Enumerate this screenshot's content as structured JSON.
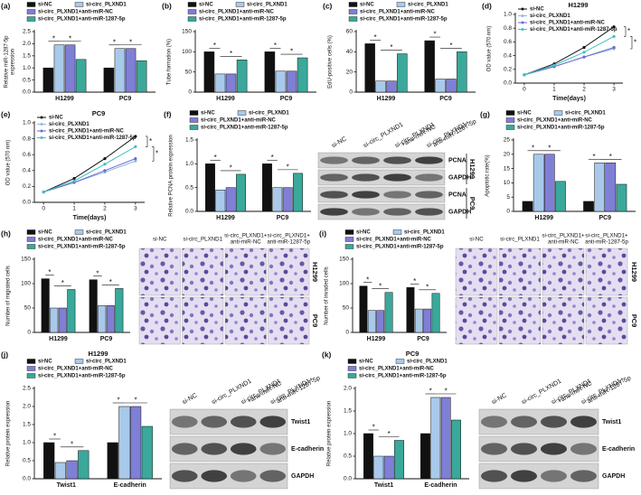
{
  "chart_data": [
    {
      "panel": "(a)",
      "type": "bar",
      "ylabel": [
        "Relative miR-1287-5p",
        "expression"
      ],
      "categories": [
        "H1299",
        "PC9"
      ],
      "series": [
        {
          "name": "si-NC",
          "color": "#111111",
          "values": [
            1.0,
            1.0
          ]
        },
        {
          "name": "si-circ_PLXND1",
          "color": "#a9c9ea",
          "values": [
            1.95,
            1.8
          ]
        },
        {
          "name": "si-circ_PLXND1+anti-miR-NC",
          "color": "#7f7fd6",
          "values": [
            1.95,
            1.8
          ]
        },
        {
          "name": "si-circ_PLXND1+anti-miR-1287-5p",
          "color": "#3aa89a",
          "values": [
            1.35,
            1.3
          ]
        }
      ],
      "ylim": [
        0,
        2.5
      ],
      "yticks": [
        {
          "value": 0,
          "label": "0.0"
        },
        0.5,
        {
          "value": 1,
          "label": "1.0"
        },
        1.5,
        {
          "value": 2,
          "label": "2.0"
        },
        2.5
      ],
      "annotations": [
        "*",
        "*",
        "*",
        "*"
      ]
    },
    {
      "panel": "(b)",
      "type": "bar",
      "ylabel": "Tube formation (%)",
      "categories": [
        "H1299",
        "PC9"
      ],
      "series": [
        {
          "name": "si-NC",
          "color": "#111111",
          "values": [
            100,
            100
          ]
        },
        {
          "name": "si-circ_PLXND1",
          "color": "#a9c9ea",
          "values": [
            45,
            52
          ]
        },
        {
          "name": "si-circ_PLXND1+anti-miR-NC",
          "color": "#7f7fd6",
          "values": [
            45,
            52
          ]
        },
        {
          "name": "si-circ_PLXND1+anti-miR-1287-5p",
          "color": "#3aa89a",
          "values": [
            80,
            85
          ]
        }
      ],
      "ylim": [
        0,
        150
      ],
      "yticks": [
        0,
        50,
        100,
        150
      ],
      "annotations": [
        "*",
        "*",
        "*",
        "*"
      ]
    },
    {
      "panel": "(c)",
      "type": "bar",
      "ylabel": "EdU-positive cells (%)",
      "categories": [
        "H1299",
        "PC9"
      ],
      "series": [
        {
          "name": "si-NC",
          "color": "#111111",
          "values": [
            48,
            51
          ]
        },
        {
          "name": "si-circ_PLXND1",
          "color": "#a9c9ea",
          "values": [
            11,
            13
          ]
        },
        {
          "name": "si-circ_PLXND1+anti-miR-NC",
          "color": "#7f7fd6",
          "values": [
            11,
            13
          ]
        },
        {
          "name": "si-circ_PLXND1+anti-miR-1287-5p",
          "color": "#3aa89a",
          "values": [
            38,
            40
          ]
        }
      ],
      "ylim": [
        0,
        60
      ],
      "yticks": [
        0,
        20,
        40,
        60
      ],
      "annotations": [
        "*",
        "*",
        "*",
        "*"
      ]
    },
    {
      "panel": "(d)",
      "type": "line",
      "title": "H1299",
      "ylabel": "OD value (570 nm)",
      "xlabel": "Time(days)",
      "x": [
        0,
        1,
        2,
        3
      ],
      "series": [
        {
          "name": "si-NC",
          "color": "#111111",
          "values": [
            0.12,
            0.28,
            0.52,
            0.82
          ]
        },
        {
          "name": "si-circ_PLXND1",
          "color": "#8fb8e0",
          "values": [
            0.12,
            0.24,
            0.38,
            0.5
          ]
        },
        {
          "name": "si-circ_PLXND1+anti-miR-NC",
          "color": "#6a6ad0",
          "values": [
            0.12,
            0.24,
            0.38,
            0.52
          ]
        },
        {
          "name": "si-circ_PLXND1+anti-miR-1287-5p",
          "color": "#40c0c0",
          "values": [
            0.12,
            0.26,
            0.45,
            0.68
          ]
        }
      ],
      "xlim": [
        -0.3,
        3.3
      ],
      "xticks": [
        0,
        1,
        2,
        3
      ],
      "ylim": [
        0,
        1
      ],
      "yticks": [
        {
          "value": 0,
          "label": "0.0"
        },
        0.2,
        0.4,
        0.6,
        0.8,
        {
          "value": 1,
          "label": "1.0"
        }
      ],
      "annotations": [
        "*",
        "*"
      ]
    },
    {
      "panel": "(e)",
      "type": "line",
      "title": "PC9",
      "ylabel": "OD value (570 nm)",
      "xlabel": "Time(days)",
      "x": [
        0,
        1,
        2,
        3
      ],
      "series": [
        {
          "name": "si-NC",
          "color": "#111111",
          "values": [
            0.13,
            0.3,
            0.55,
            0.83
          ]
        },
        {
          "name": "si-circ_PLXND1",
          "color": "#8fb8e0",
          "values": [
            0.13,
            0.25,
            0.38,
            0.52
          ]
        },
        {
          "name": "si-circ_PLXND1+anti-miR-NC",
          "color": "#6a6ad0",
          "values": [
            0.13,
            0.25,
            0.4,
            0.55
          ]
        },
        {
          "name": "si-circ_PLXND1+anti-miR-1287-5p",
          "color": "#40c0c0",
          "values": [
            0.13,
            0.27,
            0.48,
            0.7
          ]
        }
      ],
      "xlim": [
        -0.3,
        3.3
      ],
      "xticks": [
        0,
        1,
        2,
        3
      ],
      "ylim": [
        0,
        1
      ],
      "yticks": [
        {
          "value": 0,
          "label": "0.0"
        },
        0.2,
        0.4,
        0.6,
        0.8,
        {
          "value": 1,
          "label": "1.0"
        }
      ],
      "annotations": [
        "*",
        "*"
      ]
    },
    {
      "panel": "(f)",
      "type": "bar",
      "ylabel": "Relative PCNA protein expression",
      "categories": [
        "H1299",
        "PC9"
      ],
      "series": [
        {
          "name": "si-NC",
          "color": "#111111",
          "values": [
            1.0,
            1.0
          ]
        },
        {
          "name": "si-circ_PLXND1",
          "color": "#a9c9ea",
          "values": [
            0.45,
            0.5
          ]
        },
        {
          "name": "si-circ_PLXND1+anti-miR-NC",
          "color": "#7f7fd6",
          "values": [
            0.5,
            0.5
          ]
        },
        {
          "name": "si-circ_PLXND1+anti-miR-1287-5p",
          "color": "#3aa89a",
          "values": [
            0.78,
            0.8
          ]
        }
      ],
      "ylim": [
        0,
        1.5
      ],
      "yticks": [
        {
          "value": 0,
          "label": "0.0"
        },
        0.5,
        {
          "value": 1,
          "label": "1.0"
        },
        1.5
      ],
      "annotations": [
        "*",
        "*",
        "*",
        "*"
      ]
    },
    {
      "panel": "(g)",
      "type": "bar",
      "ylabel": "Apoptotic rate(%)",
      "categories": [
        "H1299",
        "PC9"
      ],
      "series": [
        {
          "name": "si-NC",
          "color": "#111111",
          "values": [
            3.5,
            3.5
          ]
        },
        {
          "name": "si-circ_PLXND1",
          "color": "#a9c9ea",
          "values": [
            20,
            17
          ]
        },
        {
          "name": "si-circ_PLXND1+anti-miR-NC",
          "color": "#7f7fd6",
          "values": [
            20,
            17
          ]
        },
        {
          "name": "si-circ_PLXND1+anti-miR-1287-5p",
          "color": "#3aa89a",
          "values": [
            10.5,
            9.5
          ]
        }
      ],
      "ylim": [
        0,
        25
      ],
      "yticks": [
        0,
        5,
        10,
        15,
        20,
        25
      ],
      "annotations": [
        "*",
        "*",
        "*",
        "*"
      ]
    },
    {
      "panel": "(h)",
      "type": "bar",
      "ylabel": "Number of migrated cells",
      "categories": [
        "H1299",
        "PC9"
      ],
      "series": [
        {
          "name": "si-NC",
          "color": "#111111",
          "values": [
            110,
            108
          ]
        },
        {
          "name": "si-circ_PLXND1",
          "color": "#a9c9ea",
          "values": [
            50,
            55
          ]
        },
        {
          "name": "si-circ_PLXND1+anti-miR-NC",
          "color": "#7f7fd6",
          "values": [
            50,
            55
          ]
        },
        {
          "name": "si-circ_PLXND1+anti-miR-1287-5p",
          "color": "#3aa89a",
          "values": [
            88,
            90
          ]
        }
      ],
      "ylim": [
        0,
        150
      ],
      "yticks": [
        0,
        50,
        100,
        150
      ],
      "annotations": [
        "*",
        "*",
        "*",
        "*"
      ]
    },
    {
      "panel": "(i)",
      "type": "bar",
      "ylabel": "Number of invaded cells",
      "categories": [
        "H1299",
        "PC9"
      ],
      "series": [
        {
          "name": "si-NC",
          "color": "#111111",
          "values": [
            95,
            92
          ]
        },
        {
          "name": "si-circ_PLXND1",
          "color": "#a9c9ea",
          "values": [
            45,
            48
          ]
        },
        {
          "name": "si-circ_PLXND1+anti-miR-NC",
          "color": "#7f7fd6",
          "values": [
            45,
            48
          ]
        },
        {
          "name": "si-circ_PLXND1+anti-miR-1287-5p",
          "color": "#3aa89a",
          "values": [
            82,
            80
          ]
        }
      ],
      "ylim": [
        0,
        150
      ],
      "yticks": [
        0,
        50,
        100,
        150
      ],
      "annotations": [
        "*",
        "*",
        "*",
        "*"
      ]
    },
    {
      "panel": "(j)",
      "type": "bar",
      "title": "H1299",
      "ylabel": "Relative protein expression",
      "categories": [
        "Twist1",
        "E-cadherin"
      ],
      "series": [
        {
          "name": "si-NC",
          "color": "#111111",
          "values": [
            1.0,
            1.0
          ]
        },
        {
          "name": "si-circ_PLXND1",
          "color": "#a9c9ea",
          "values": [
            0.45,
            2.0
          ]
        },
        {
          "name": "si-circ_PLXND1+anti-miR-NC",
          "color": "#7f7fd6",
          "values": [
            0.5,
            2.0
          ]
        },
        {
          "name": "si-circ_PLXND1+anti-miR-1287-5p",
          "color": "#3aa89a",
          "values": [
            0.78,
            1.45
          ]
        }
      ],
      "ylim": [
        0,
        2.5
      ],
      "yticks": [
        {
          "value": 0,
          "label": "0.0"
        },
        0.5,
        {
          "value": 1,
          "label": "1.0"
        },
        1.5,
        {
          "value": 2,
          "label": "2.0"
        },
        2.5
      ],
      "annotations": [
        "*",
        "*",
        "*",
        "*"
      ]
    },
    {
      "panel": "(k)",
      "type": "bar",
      "title": "PC9",
      "ylabel": "Relative protein expression",
      "categories": [
        "Twist1",
        "E-cadherin"
      ],
      "series": [
        {
          "name": "si-NC",
          "color": "#111111",
          "values": [
            1.0,
            1.0
          ]
        },
        {
          "name": "si-circ_PLXND1",
          "color": "#a9c9ea",
          "values": [
            0.5,
            1.8
          ]
        },
        {
          "name": "si-circ_PLXND1+anti-miR-NC",
          "color": "#7f7fd6",
          "values": [
            0.5,
            1.8
          ]
        },
        {
          "name": "si-circ_PLXND1+anti-miR-1287-5p",
          "color": "#3aa89a",
          "values": [
            0.85,
            1.3
          ]
        }
      ],
      "ylim": [
        0,
        2
      ],
      "yticks": [
        {
          "value": 0,
          "label": "0.0"
        },
        0.5,
        {
          "value": 1,
          "label": "1.0"
        },
        1.5,
        {
          "value": 2,
          "label": "2.0"
        }
      ],
      "annotations": [
        "*",
        "*",
        "*",
        "*"
      ]
    }
  ],
  "blots": [
    {
      "columns": [
        [
          "si-NC"
        ],
        [
          "si-circ_PLXND1"
        ],
        [
          "si-circ_PLXND1",
          "+anti-miR-NC"
        ],
        [
          "si-circ_PLXND1+",
          "anti-miR-1287-5p"
        ]
      ],
      "rows": [
        "PCNA",
        "GAPDH",
        "PCNA",
        "GAPDH"
      ],
      "groups": [
        "H1299",
        "PC9"
      ]
    },
    {
      "columns": [
        [
          "si-NC"
        ],
        [
          "si-circ_PLXND1"
        ],
        [
          "si-circ_PLXND1",
          "+anti-miR-NC"
        ],
        [
          "si-circ_PLXND1+",
          "anti-miR-1287-5p"
        ]
      ],
      "rows": [
        "Twist1",
        "E-cadherin",
        "GAPDH"
      ]
    },
    {
      "columns": [
        [
          "si-NC"
        ],
        [
          "si-circ_PLXND1"
        ],
        [
          "si-circ_PLXND1",
          "+anti-miR-NC"
        ],
        [
          "si-circ_PLXND1+",
          "anti-miR-1287-5p"
        ]
      ],
      "rows": [
        "Twist1",
        "E-cadherin",
        "GAPDH"
      ]
    }
  ],
  "micrographs": [
    {
      "columns": [
        [
          "si-NC"
        ],
        [
          "si-circ_PLXND1"
        ],
        [
          "si-circ_PLXND1+",
          "anti-miR-NC"
        ],
        [
          "si-circ_PLXND1+",
          "anti-miR-1287-5p"
        ]
      ],
      "rows": [
        "H1299",
        "PC9"
      ]
    },
    {
      "columns": [
        [
          "si-NC"
        ],
        [
          "si-circ_PLXND1"
        ],
        [
          "si-circ_PLXND1+",
          "anti-miR-NC"
        ],
        [
          "si-circ_PLXND1+",
          "anti-miR-1287-5p"
        ]
      ],
      "rows": [
        "H1299",
        "PC9"
      ]
    }
  ]
}
